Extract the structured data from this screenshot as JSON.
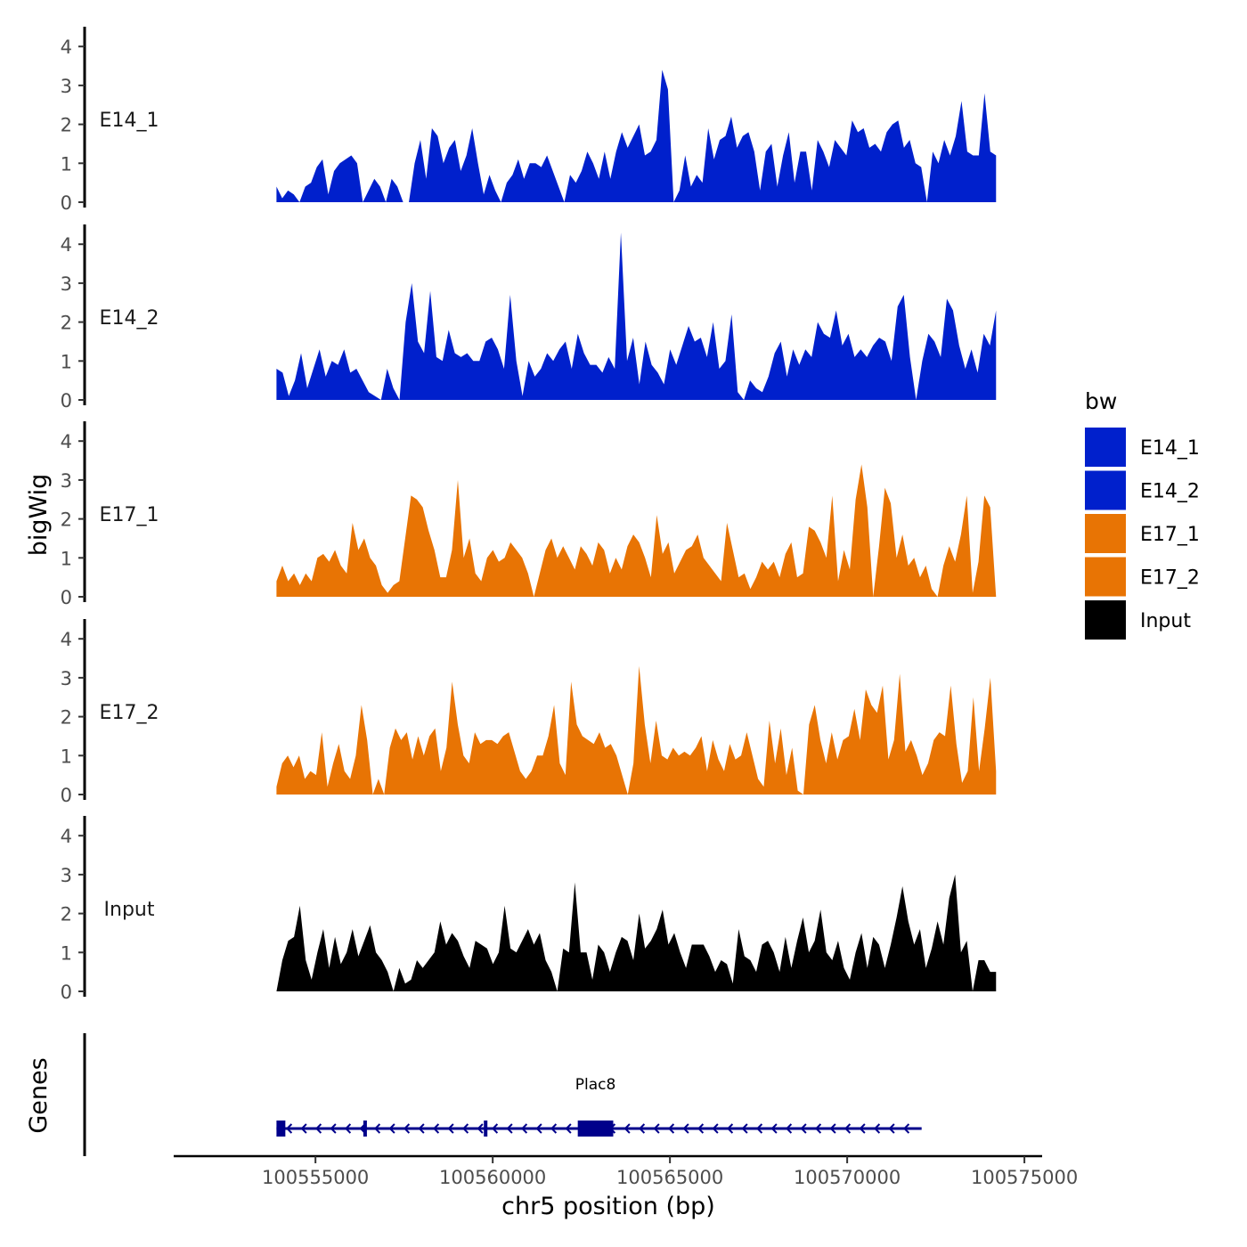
{
  "chart_data": {
    "type": "area",
    "title": "",
    "ylabel": "bigWig",
    "genes_label": "Genes",
    "xlabel": "chr5 position (bp)",
    "xlim": [
      100551000,
      100575500
    ],
    "data_range": [
      100553900,
      100574200
    ],
    "ylim": [
      0,
      4.5
    ],
    "yticks": [
      0,
      1,
      2,
      3,
      4
    ],
    "xticks": [
      100555000,
      100560000,
      100565000,
      100570000,
      100575000
    ],
    "xtick_labels": [
      "100555000",
      "100560000",
      "100565000",
      "100570000",
      "100575000"
    ],
    "legend": {
      "title": "bw",
      "position": "right",
      "entries": [
        {
          "label": "E14_1",
          "color": "#0020cc"
        },
        {
          "label": "E14_2",
          "color": "#0020cc"
        },
        {
          "label": "E17_1",
          "color": "#e87404"
        },
        {
          "label": "E17_2",
          "color": "#e87404"
        },
        {
          "label": "Input",
          "color": "#000000"
        }
      ]
    },
    "series": [
      {
        "name": "E14_1",
        "color": "#0020cc",
        "values": [
          0.4,
          0.1,
          0.3,
          0.2,
          0,
          0.4,
          0.5,
          0.9,
          1.1,
          0.2,
          0.8,
          1.0,
          1.1,
          1.2,
          1.0,
          0,
          0.3,
          0.6,
          0.4,
          0,
          0.6,
          0.4,
          0,
          0,
          1.0,
          1.6,
          0.6,
          1.9,
          1.7,
          1.0,
          1.4,
          1.6,
          0.8,
          1.2,
          1.9,
          1.0,
          0.2,
          0.7,
          0.3,
          0,
          0.5,
          0.7,
          1.1,
          0.6,
          1.0,
          1.0,
          0.9,
          1.2,
          0.8,
          0.4,
          0,
          0.7,
          0.5,
          0.8,
          1.3,
          1.0,
          0.6,
          1.3,
          0.6,
          1.3,
          1.8,
          1.4,
          1.7,
          2.0,
          1.2,
          1.3,
          1.6,
          3.4,
          2.9,
          0,
          0.3,
          1.2,
          0.4,
          0.7,
          0.5,
          1.9,
          1.1,
          1.6,
          1.7,
          2.2,
          1.4,
          1.7,
          1.8,
          1.3,
          0.3,
          1.3,
          1.5,
          0.4,
          1.2,
          1.8,
          0.5,
          1.3,
          1.3,
          0.3,
          1.6,
          1.3,
          0.9,
          1.6,
          1.4,
          1.2,
          2.1,
          1.8,
          1.9,
          1.4,
          1.5,
          1.3,
          1.8,
          2.0,
          2.1,
          1.4,
          1.6,
          1.0,
          0.9,
          0,
          1.3,
          1.0,
          1.6,
          1.2,
          1.7,
          2.6,
          1.3,
          1.2,
          1.2,
          2.8,
          1.3,
          1.2
        ]
      },
      {
        "name": "E14_2",
        "color": "#0020cc",
        "values": [
          0.8,
          0.7,
          0.1,
          0.5,
          1.2,
          0.3,
          0.8,
          1.3,
          0.6,
          1.0,
          0.9,
          1.3,
          0.7,
          0.8,
          0.5,
          0.2,
          0.1,
          0,
          0.8,
          0.3,
          0,
          2.0,
          3.0,
          1.5,
          1.2,
          2.8,
          1.1,
          1.0,
          1.8,
          1.2,
          1.1,
          1.2,
          1.0,
          1.0,
          1.5,
          1.6,
          1.3,
          0.8,
          2.7,
          1.0,
          0.1,
          1.0,
          0.6,
          0.8,
          1.2,
          1.0,
          1.3,
          1.5,
          0.8,
          1.7,
          1.2,
          0.9,
          0.9,
          0.7,
          1.1,
          0.8,
          4.3,
          1.0,
          1.6,
          0.4,
          1.5,
          0.9,
          0.7,
          0.4,
          1.3,
          0.9,
          1.4,
          1.9,
          1.5,
          1.6,
          1.1,
          2.0,
          0.8,
          1.0,
          2.2,
          0.2,
          0,
          0.5,
          0.3,
          0.2,
          0.6,
          1.2,
          1.5,
          0.6,
          1.3,
          0.9,
          1.3,
          1.1,
          2.0,
          1.7,
          1.6,
          2.3,
          1.4,
          1.7,
          1.1,
          1.3,
          1.1,
          1.4,
          1.6,
          1.5,
          1.0,
          2.4,
          2.7,
          1.1,
          0,
          1.0,
          1.7,
          1.5,
          1.1,
          2.6,
          2.3,
          1.4,
          0.8,
          1.3,
          0.7,
          1.7,
          1.4,
          2.3
        ]
      },
      {
        "name": "E17_1",
        "color": "#e87404",
        "values": [
          0.4,
          0.8,
          0.4,
          0.6,
          0.3,
          0.6,
          0.4,
          1.0,
          1.1,
          0.9,
          1.2,
          0.8,
          0.6,
          1.9,
          1.2,
          1.5,
          1.0,
          0.8,
          0.3,
          0.1,
          0.3,
          0.4,
          1.5,
          2.6,
          2.5,
          2.3,
          1.7,
          1.2,
          0.5,
          0.5,
          1.2,
          3.0,
          1.0,
          1.5,
          0.6,
          0.4,
          1.0,
          1.2,
          0.9,
          1.0,
          1.4,
          1.2,
          1.0,
          0.6,
          0,
          0.6,
          1.2,
          1.5,
          1.0,
          1.3,
          1.0,
          0.7,
          1.3,
          1.1,
          0.8,
          1.4,
          1.2,
          0.6,
          1.0,
          0.7,
          1.3,
          1.6,
          1.4,
          1.0,
          0.5,
          2.1,
          1.1,
          1.4,
          0.6,
          0.9,
          1.2,
          1.3,
          1.6,
          1.0,
          0.8,
          0.6,
          0.4,
          1.9,
          1.2,
          0.5,
          0.6,
          0.2,
          0.5,
          0.9,
          0.7,
          0.9,
          0.5,
          1.1,
          1.4,
          0.5,
          0.6,
          1.8,
          1.7,
          1.4,
          1.0,
          2.6,
          0.4,
          1.2,
          0.7,
          2.5,
          3.4,
          2.3,
          0,
          1.3,
          2.8,
          2.4,
          1.0,
          1.6,
          0.8,
          1.0,
          0.5,
          0.8,
          0.2,
          0,
          0.8,
          1.3,
          0.9,
          1.6,
          2.6,
          0.1,
          0.9,
          2.6,
          2.3,
          0
        ]
      },
      {
        "name": "E17_2",
        "color": "#e87404",
        "values": [
          0.2,
          0.8,
          1.0,
          0.7,
          1.0,
          0.4,
          0.6,
          0.5,
          1.6,
          0.2,
          0.8,
          1.3,
          0.6,
          0.4,
          1.0,
          2.3,
          1.4,
          0,
          0.4,
          0,
          1.2,
          1.7,
          1.4,
          1.6,
          0.9,
          1.5,
          1.0,
          1.5,
          1.7,
          0.6,
          1.2,
          2.9,
          1.8,
          1.0,
          0.8,
          1.6,
          1.3,
          1.4,
          1.4,
          1.3,
          1.5,
          1.6,
          1.1,
          0.6,
          0.4,
          0.6,
          1.0,
          1.0,
          1.5,
          2.3,
          0.8,
          0.5,
          2.9,
          1.8,
          1.5,
          1.4,
          1.3,
          1.6,
          1.2,
          1.3,
          1.0,
          0.5,
          0,
          0.8,
          3.3,
          1.8,
          0.8,
          1.9,
          1.0,
          0.9,
          1.2,
          1.0,
          1.1,
          1.0,
          1.2,
          1.5,
          0.6,
          1.4,
          0.9,
          0.6,
          1.3,
          0.9,
          1.0,
          1.6,
          1.0,
          0.4,
          0.2,
          1.9,
          0.8,
          1.7,
          0.5,
          1.2,
          0.1,
          0,
          1.8,
          2.3,
          1.4,
          0.8,
          1.6,
          0.9,
          1.4,
          1.5,
          2.2,
          1.4,
          2.7,
          2.3,
          2.1,
          2.8,
          0.9,
          1.4,
          3.1,
          1.1,
          1.4,
          1.0,
          0.5,
          0.8,
          1.4,
          1.6,
          1.5,
          2.8,
          1.3,
          0.3,
          0.6,
          2.5,
          0.6,
          1.7,
          3.0,
          0.6
        ]
      },
      {
        "name": "Input",
        "color": "#000000",
        "values": [
          0,
          0.8,
          1.3,
          1.4,
          2.2,
          0.8,
          0.3,
          1.0,
          1.6,
          0.6,
          1.4,
          0.7,
          1.0,
          1.6,
          0.9,
          1.3,
          1.7,
          1.0,
          0.8,
          0.5,
          0,
          0.6,
          0.2,
          0.3,
          0.8,
          0.6,
          0.8,
          1.0,
          1.8,
          1.2,
          1.5,
          1.3,
          0.9,
          0.6,
          1.3,
          1.2,
          1.1,
          0.7,
          1.0,
          2.2,
          1.1,
          1.0,
          1.3,
          1.6,
          1.2,
          1.5,
          0.8,
          0.5,
          0,
          1.1,
          1.0,
          2.8,
          1.0,
          1.0,
          0.3,
          1.2,
          1.0,
          0.5,
          1.0,
          1.4,
          1.3,
          0.8,
          2.0,
          1.1,
          1.3,
          1.6,
          2.1,
          1.2,
          1.5,
          1.0,
          0.6,
          1.2,
          1.2,
          1.2,
          0.9,
          0.5,
          0.8,
          0.7,
          0.2,
          1.6,
          0.9,
          0.8,
          0.5,
          1.2,
          1.3,
          1.0,
          0.5,
          1.4,
          0.6,
          1.3,
          1.9,
          1.0,
          1.3,
          2.1,
          1.0,
          0.8,
          1.3,
          0.6,
          0.3,
          1.0,
          1.5,
          0.6,
          1.4,
          1.2,
          0.6,
          1.2,
          1.9,
          2.7,
          1.8,
          1.2,
          1.6,
          0.6,
          1.1,
          1.8,
          1.2,
          2.4,
          3.0,
          1.0,
          1.3,
          0,
          0.8,
          0.8,
          0.5,
          0.5
        ]
      }
    ],
    "genes": [
      {
        "name": "Plac8",
        "strand": "-",
        "start": 100553900,
        "end": 100572100,
        "exons": [
          {
            "start": 100553900,
            "end": 100554150
          },
          {
            "start": 100556350,
            "end": 100556450
          },
          {
            "start": 100559750,
            "end": 100559850
          },
          {
            "start": 100562400,
            "end": 100563400
          }
        ]
      }
    ]
  }
}
